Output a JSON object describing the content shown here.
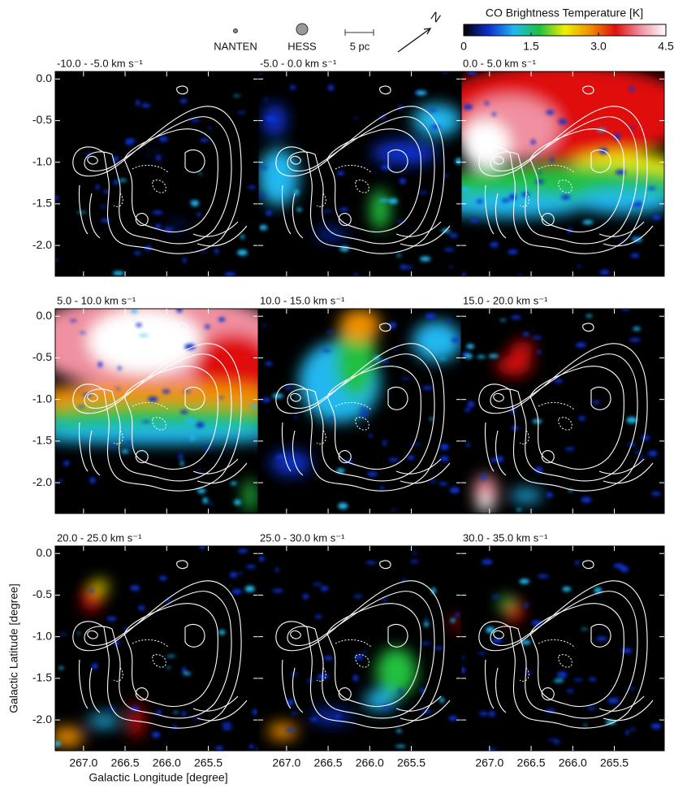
{
  "chart_data": {
    "type": "map-grid",
    "xlabel": "Galactic Longitude [degree]",
    "ylabel": "Galactic Latitude [degree]",
    "xlim": [
      267.34,
      264.9
    ],
    "ylim": [
      -2.37,
      0.09
    ],
    "xticks": [
      {
        "value": 267,
        "label": "267.0"
      },
      {
        "value": 266.5,
        "label": "266.5"
      },
      {
        "value": 266,
        "label": "266.0"
      },
      {
        "value": 265.5,
        "label": "265.5"
      }
    ],
    "yticks": [
      {
        "value": 0,
        "label": "0.0"
      },
      {
        "value": -0.5,
        "label": "-0.5"
      },
      {
        "value": -1,
        "label": "-1.0"
      },
      {
        "value": -1.5,
        "label": "-1.5"
      },
      {
        "value": -2,
        "label": "-2.0"
      }
    ],
    "panels": [
      {
        "title": "-10.0 -  -5.0 km s⁻¹"
      },
      {
        "title": "-5.0 -  0.0 km s⁻¹"
      },
      {
        "title": "0.0 -  5.0 km s⁻¹"
      },
      {
        "title": "5.0 -  10.0 km s⁻¹"
      },
      {
        "title": "10.0 -  15.0 km s⁻¹"
      },
      {
        "title": "15.0 -  20.0 km s⁻¹"
      },
      {
        "title": "20.0 -  25.0 km s⁻¹"
      },
      {
        "title": "25.0 -  30.0 km s⁻¹"
      },
      {
        "title": "30.0 -  35.0 km s⁻¹"
      }
    ],
    "colorbar": {
      "title": "CO Brightness Temperature [K]",
      "lim": [
        0,
        4.5
      ],
      "ticks": [
        0,
        1.5,
        {
          "value": 3,
          "label": "3.0"
        },
        4.5
      ],
      "colors": [
        "#000000",
        "#1030d0",
        "#20b8f0",
        "#20c040",
        "#f0f000",
        "#f09000",
        "#e01010",
        "#f090a0",
        "#ffffff"
      ]
    },
    "legend": [
      "NANTEN",
      "HESS",
      "5 pc"
    ],
    "north": "N"
  }
}
